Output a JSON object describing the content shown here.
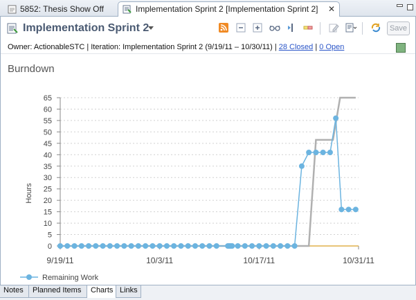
{
  "tabs": [
    {
      "label": "5852: Thesis Show Off",
      "active": false
    },
    {
      "label": "Implementation Sprint 2 [Implementation Sprint 2]",
      "active": true
    }
  ],
  "header": {
    "title": "Implementation Sprint 2",
    "save_label": "Save",
    "toolbar_icons": [
      "rss-feed-icon",
      "collapse-all-icon",
      "expand-all-icon",
      "glasses-icon",
      "split-view-icon",
      "highlight-icon",
      "edit-icon",
      "new-item-icon",
      "sync-icon"
    ]
  },
  "info": {
    "owner_text": "Owner: ActionableSTC | Iteration: Implementation Sprint 2 (9/19/11 – 10/30/11) |",
    "closed_link": "28 Closed",
    "pipe": "|",
    "open_link": "0 Open",
    "status_color": "#7fb37f"
  },
  "section_title": "Burndown",
  "chart_data": {
    "type": "line",
    "title": "",
    "xlabel": "",
    "ylabel": "Hours",
    "ylim": [
      0,
      65
    ],
    "yticks": [
      0,
      5,
      10,
      15,
      20,
      25,
      30,
      35,
      40,
      45,
      50,
      55,
      60,
      65
    ],
    "xlim": [
      "2011-09-19",
      "2011-10-31"
    ],
    "xticks": [
      "9/19/11",
      "10/3/11",
      "10/17/11",
      "10/31/11"
    ],
    "xtick_days": [
      0,
      14,
      28,
      42
    ],
    "grid": true,
    "legend": {
      "position": "bottom-left",
      "entries": [
        "Remaining Work"
      ]
    },
    "series": [
      {
        "name": "Remaining Work",
        "color": "#6cb4e0",
        "x": [
          0,
          1,
          2,
          3,
          4,
          5,
          6,
          7,
          8,
          9,
          10,
          11,
          12,
          13,
          14,
          15,
          16,
          17,
          18,
          19,
          20,
          21,
          22,
          23.6,
          23.8,
          24,
          24.2,
          25,
          26,
          27,
          28,
          29,
          30,
          31,
          32,
          33,
          34,
          35,
          36,
          37,
          38,
          38.8,
          39.6,
          40.6,
          41.6
        ],
        "y": [
          0,
          0,
          0,
          0,
          0,
          0,
          0,
          0,
          0,
          0,
          0,
          0,
          0,
          0,
          0,
          0,
          0,
          0,
          0,
          0,
          0,
          0,
          0,
          0,
          0,
          0,
          0,
          0,
          0,
          0,
          0,
          0,
          0,
          0,
          0,
          0,
          35,
          41,
          41,
          41,
          41,
          56,
          16,
          16,
          16
        ]
      },
      {
        "name": "",
        "color": "#b0b0b0",
        "x": [
          0,
          35,
          36,
          38.4,
          39.4,
          41.6
        ],
        "y": [
          0,
          0,
          46.5,
          46.5,
          65,
          65
        ]
      },
      {
        "name": "",
        "color": "#e0b04a",
        "x": [
          0,
          42
        ],
        "y": [
          0,
          0
        ]
      }
    ]
  },
  "bottom_tabs": [
    {
      "label": "Notes",
      "active": false
    },
    {
      "label": "Planned Items",
      "active": false
    },
    {
      "label": "Charts",
      "active": true
    },
    {
      "label": "Links",
      "active": false
    }
  ]
}
